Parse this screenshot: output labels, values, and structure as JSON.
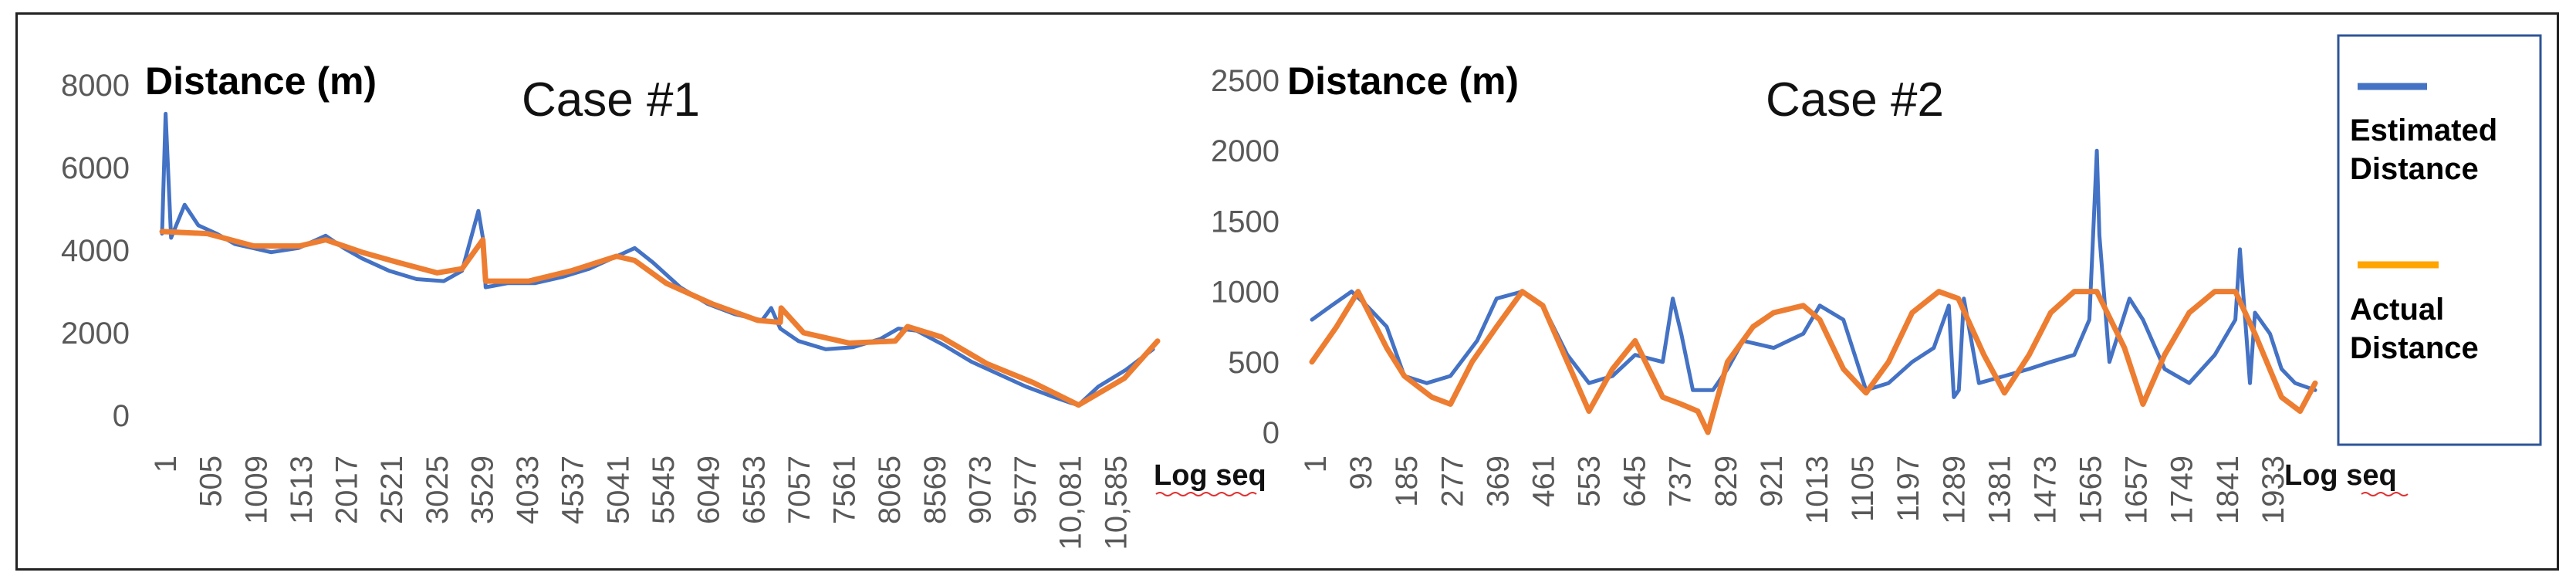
{
  "chart_data": [
    {
      "type": "line",
      "title": "Case #1",
      "ylabel": "Distance (m)",
      "xlabel": "Log seq",
      "ylim": [
        0,
        8000
      ],
      "yticks": [
        "8000",
        "6000",
        "4000",
        "2000",
        "0"
      ],
      "xticks": [
        "1",
        "505",
        "1009",
        "1513",
        "2017",
        "2521",
        "3025",
        "3529",
        "4033",
        "4537",
        "5041",
        "5545",
        "6049",
        "6553",
        "7057",
        "7561",
        "8065",
        "8569",
        "9073",
        "9577",
        "10,081",
        "10,585"
      ],
      "xrange": [
        1,
        10950
      ],
      "grid": false,
      "series": [
        {
          "name": "Estimated Distance",
          "color": "#4472C4",
          "x": [
            1,
            40,
            100,
            250,
            400,
            600,
            800,
            1000,
            1200,
            1500,
            1800,
            2000,
            2200,
            2500,
            2800,
            3100,
            3300,
            3480,
            3529,
            3560,
            3800,
            4100,
            4400,
            4700,
            5000,
            5200,
            5400,
            5700,
            6000,
            6300,
            6600,
            6700,
            6800,
            7000,
            7300,
            7600,
            7900,
            8100,
            8300,
            8600,
            8900,
            9200,
            9500,
            9800,
            10000,
            10081,
            10300,
            10600,
            10900
          ],
          "y": [
            4400,
            7300,
            4300,
            5100,
            4600,
            4400,
            4150,
            4050,
            3950,
            4050,
            4350,
            4050,
            3800,
            3500,
            3300,
            3250,
            3500,
            4950,
            4300,
            3100,
            3200,
            3200,
            3350,
            3550,
            3850,
            4050,
            3700,
            3100,
            2700,
            2450,
            2300,
            2600,
            2100,
            1800,
            1600,
            1650,
            1850,
            2100,
            2050,
            1700,
            1300,
            1000,
            700,
            450,
            300,
            250,
            700,
            1100,
            1600
          ]
        },
        {
          "name": "Actual Distance",
          "color": "#ED7D31",
          "x": [
            1,
            500,
            1009,
            1513,
            1800,
            2200,
            2600,
            3025,
            3300,
            3529,
            3560,
            4033,
            4500,
            5000,
            5200,
            5545,
            6049,
            6553,
            6800,
            6810,
            7057,
            7561,
            8065,
            8200,
            8569,
            9073,
            9577,
            10081,
            10585,
            10950
          ],
          "y": [
            4450,
            4400,
            4100,
            4100,
            4250,
            3950,
            3700,
            3450,
            3550,
            4250,
            3250,
            3250,
            3500,
            3850,
            3750,
            3200,
            2700,
            2300,
            2250,
            2600,
            2000,
            1750,
            1800,
            2150,
            1900,
            1250,
            800,
            250,
            900,
            1800
          ]
        }
      ]
    },
    {
      "type": "line",
      "title": "Case #2",
      "ylabel": "Distance (m)",
      "xlabel": "Log seq",
      "ylim": [
        0,
        2500
      ],
      "yticks": [
        "2500",
        "2000",
        "1500",
        "1000",
        "500",
        "0"
      ],
      "xticks": [
        "1",
        "93",
        "185",
        "277",
        "369",
        "461",
        "553",
        "645",
        "737",
        "829",
        "921",
        "1013",
        "1105",
        "1197",
        "1289",
        "1381",
        "1473",
        "1565",
        "1657",
        "1749",
        "1841",
        "1933"
      ],
      "xrange": [
        1,
        2000
      ],
      "grid": false,
      "series": [
        {
          "name": "Estimated Distance",
          "color": "#4472C4",
          "x": [
            1,
            40,
            80,
            110,
            150,
            185,
            230,
            277,
            330,
            369,
            420,
            461,
            510,
            553,
            600,
            645,
            700,
            720,
            737,
            760,
            800,
            829,
            860,
            921,
            980,
            1013,
            1060,
            1105,
            1150,
            1197,
            1240,
            1270,
            1280,
            1290,
            1300,
            1330,
            1381,
            1430,
            1473,
            1520,
            1550,
            1560,
            1565,
            1570,
            1590,
            1630,
            1657,
            1700,
            1749,
            1800,
            1841,
            1850,
            1870,
            1880,
            1910,
            1933,
            1960,
            2000
          ],
          "y": [
            800,
            900,
            1000,
            900,
            750,
            400,
            350,
            400,
            650,
            950,
            1000,
            900,
            550,
            350,
            400,
            550,
            500,
            950,
            700,
            300,
            300,
            450,
            650,
            600,
            700,
            900,
            800,
            300,
            350,
            500,
            600,
            900,
            250,
            300,
            950,
            350,
            400,
            450,
            500,
            550,
            800,
            1600,
            2000,
            1400,
            500,
            950,
            800,
            450,
            350,
            550,
            800,
            1300,
            350,
            850,
            700,
            450,
            350,
            300
          ]
        },
        {
          "name": "Actual Distance",
          "color": "#ED7D31",
          "x": [
            1,
            50,
            93,
            150,
            185,
            240,
            277,
            320,
            369,
            420,
            461,
            510,
            553,
            600,
            645,
            700,
            737,
            770,
            790,
            829,
            880,
            921,
            980,
            1013,
            1060,
            1105,
            1150,
            1197,
            1250,
            1289,
            1340,
            1381,
            1430,
            1473,
            1520,
            1565,
            1620,
            1657,
            1700,
            1749,
            1800,
            1841,
            1880,
            1933,
            1970,
            2000
          ],
          "y": [
            500,
            750,
            1000,
            600,
            400,
            250,
            200,
            500,
            750,
            1000,
            900,
            500,
            150,
            450,
            650,
            250,
            200,
            150,
            0,
            500,
            750,
            850,
            900,
            800,
            450,
            280,
            500,
            850,
            1000,
            950,
            550,
            280,
            550,
            850,
            1000,
            1000,
            600,
            200,
            550,
            850,
            1000,
            1000,
            700,
            250,
            150,
            350
          ]
        }
      ]
    }
  ],
  "legend": {
    "items": [
      {
        "label_line1": "Estimated",
        "label_line2": "Distance",
        "color": "#4472C4"
      },
      {
        "label_line1": "Actual",
        "label_line2": "Distance",
        "color": "#FFA500"
      }
    ]
  }
}
